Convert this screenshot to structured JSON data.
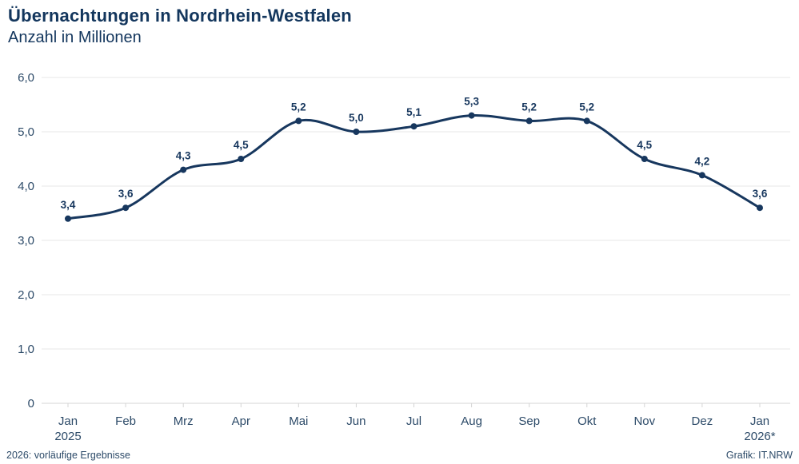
{
  "header": {
    "title": "Übernachtungen in Nordrhein-Westfalen",
    "subtitle": "Anzahl in Millionen"
  },
  "chart_data": {
    "type": "line",
    "title": "Übernachtungen in Nordrhein-Westfalen",
    "subtitle": "Anzahl in Millionen",
    "categories": [
      "Jan",
      "Feb",
      "Mrz",
      "Apr",
      "Mai",
      "Jun",
      "Jul",
      "Aug",
      "Sep",
      "Okt",
      "Nov",
      "Dez",
      "Jan"
    ],
    "category_sublabels": [
      "2025",
      "",
      "",
      "",
      "",
      "",
      "",
      "",
      "",
      "",
      "",
      "",
      "2026*"
    ],
    "values": [
      3.4,
      3.6,
      4.3,
      4.5,
      5.2,
      5.0,
      5.1,
      5.3,
      5.2,
      5.2,
      4.5,
      4.2,
      3.6
    ],
    "value_labels": [
      "3,4",
      "3,6",
      "4,3",
      "4,5",
      "5,2",
      "5,0",
      "5,1",
      "5,3",
      "5,2",
      "5,2",
      "4,5",
      "4,2",
      "3,6"
    ],
    "xlabel": "",
    "ylabel": "Anzahl in Millionen",
    "ylim": [
      0,
      6
    ],
    "yticks": [
      0,
      1,
      2,
      3,
      4,
      5,
      6
    ],
    "ytick_labels": [
      "0",
      "1,0",
      "2,0",
      "3,0",
      "4,0",
      "5,0",
      "6,0"
    ],
    "grid": true,
    "legend_position": "none",
    "colors": {
      "line": "#17375e",
      "marker": "#17375e",
      "value_label": "#17375e",
      "axis_text": "#2c4a68",
      "grid": "#e7e7e7",
      "axis_line": "#d4d4d4",
      "tick": "#d4d4d4"
    }
  },
  "footer": {
    "note": "2026: vorläufige Ergebnisse",
    "credit": "Grafik: IT.NRW"
  }
}
